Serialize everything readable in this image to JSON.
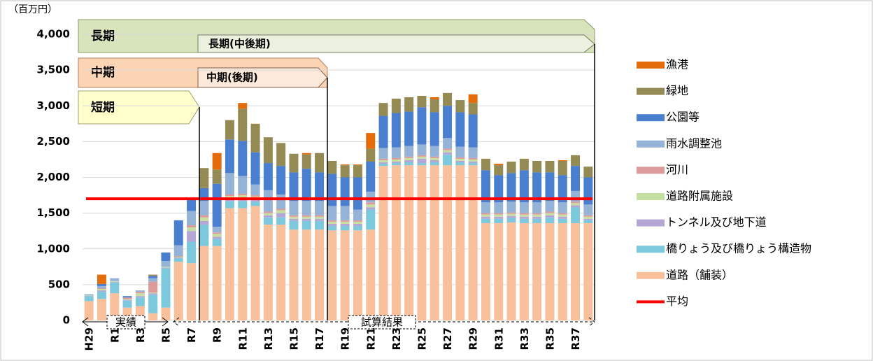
{
  "chart_data": {
    "type": "bar",
    "stacked": true,
    "y_unit": "（百万円）",
    "categories": [
      "H29",
      null,
      "R1",
      null,
      "R3",
      null,
      "R5",
      null,
      "R7",
      null,
      "R9",
      null,
      "R11",
      null,
      "R13",
      null,
      "R15",
      null,
      "R17",
      null,
      "R19",
      null,
      "R21",
      null,
      "R23",
      null,
      "R25",
      null,
      "R27",
      null,
      "R29",
      null,
      "R31",
      null,
      "R33",
      null,
      "R35",
      null,
      "R37",
      null
    ],
    "ylim": [
      0,
      4000
    ],
    "yticks": [
      0,
      500,
      {
        "value": 1000,
        "label": "1,000"
      },
      {
        "value": 1500,
        "label": "1,500"
      },
      {
        "value": 2000,
        "label": "2,000"
      },
      {
        "value": 2500,
        "label": "2,500"
      },
      {
        "value": 3000,
        "label": "3,000"
      },
      {
        "value": 3500,
        "label": "3,500"
      },
      {
        "value": 4000,
        "label": "4,000"
      }
    ],
    "grid": true,
    "legend": "right",
    "series": [
      {
        "name": "道路（舗装）",
        "color": "#f8c19c",
        "values": [
          270,
          300,
          380,
          180,
          200,
          100,
          180,
          820,
          800,
          1040,
          1040,
          1570,
          1570,
          1600,
          1340,
          1340,
          1270,
          1270,
          1270,
          1260,
          1260,
          1260,
          1270,
          2160,
          2170,
          2170,
          2170,
          2170,
          2170,
          2170,
          2170,
          1360,
          1360,
          1370,
          1360,
          1360,
          1360,
          1360,
          1360,
          1360
        ]
      },
      {
        "name": "橋りょう及び橋りょう構造物",
        "color": "#7cc8dd",
        "values": [
          70,
          100,
          150,
          100,
          120,
          260,
          550,
          50,
          300,
          300,
          100,
          100,
          100,
          60,
          100,
          100,
          120,
          120,
          120,
          60,
          60,
          60,
          280,
          30,
          30,
          40,
          30,
          40,
          150,
          40,
          30,
          60,
          60,
          60,
          60,
          60,
          80,
          60,
          220,
          40
        ]
      },
      {
        "name": "トンネル及び地下道",
        "color": "#b4a7d6",
        "values": [
          10,
          20,
          10,
          10,
          20,
          20,
          10,
          10,
          150,
          50,
          30,
          30,
          30,
          30,
          30,
          60,
          30,
          30,
          30,
          30,
          30,
          30,
          30,
          20,
          20,
          30,
          60,
          30,
          30,
          20,
          20,
          30,
          30,
          30,
          30,
          30,
          30,
          30,
          30,
          20
        ]
      },
      {
        "name": "道路附属施設",
        "color": "#c5dfa0",
        "values": [
          10,
          20,
          10,
          10,
          40,
          10,
          10,
          10,
          50,
          50,
          40,
          40,
          50,
          40,
          30,
          40,
          30,
          30,
          30,
          30,
          30,
          30,
          40,
          30,
          30,
          30,
          30,
          30,
          30,
          30,
          30,
          30,
          30,
          30,
          30,
          30,
          30,
          30,
          30,
          30
        ]
      },
      {
        "name": "河川",
        "color": "#dd9a9a",
        "values": [
          0,
          10,
          0,
          20,
          20,
          150,
          0,
          10,
          30,
          30,
          20,
          20,
          20,
          20,
          20,
          20,
          20,
          20,
          20,
          20,
          20,
          20,
          30,
          20,
          20,
          20,
          20,
          20,
          20,
          20,
          20,
          20,
          20,
          20,
          20,
          20,
          20,
          20,
          20,
          20
        ]
      },
      {
        "name": "雨水調整池",
        "color": "#95b3d7",
        "values": [
          10,
          30,
          40,
          0,
          20,
          50,
          80,
          150,
          200,
          200,
          80,
          300,
          250,
          150,
          300,
          200,
          200,
          200,
          200,
          200,
          200,
          150,
          150,
          150,
          150,
          150,
          150,
          150,
          150,
          150,
          150,
          150,
          150,
          150,
          150,
          150,
          150,
          150,
          150,
          150
        ]
      },
      {
        "name": "公園等",
        "color": "#4a7fd0",
        "values": [
          0,
          30,
          0,
          20,
          0,
          30,
          120,
          350,
          170,
          180,
          600,
          470,
          490,
          450,
          380,
          400,
          400,
          450,
          400,
          450,
          400,
          450,
          420,
          450,
          480,
          480,
          520,
          470,
          450,
          480,
          460,
          450,
          380,
          400,
          450,
          420,
          400,
          380,
          350,
          380
        ]
      },
      {
        "name": "緑地",
        "color": "#948a54",
        "values": [
          0,
          0,
          0,
          0,
          0,
          20,
          0,
          0,
          0,
          280,
          200,
          270,
          450,
          400,
          360,
          320,
          260,
          200,
          270,
          180,
          170,
          170,
          180,
          180,
          200,
          200,
          160,
          180,
          180,
          170,
          160,
          160,
          140,
          160,
          160,
          160,
          160,
          200,
          150,
          150
        ]
      },
      {
        "name": "漁港",
        "color": "#e46c0a",
        "values": [
          0,
          130,
          0,
          0,
          0,
          0,
          0,
          0,
          0,
          0,
          230,
          0,
          80,
          0,
          0,
          0,
          0,
          20,
          0,
          0,
          10,
          10,
          220,
          0,
          0,
          0,
          0,
          30,
          0,
          0,
          120,
          0,
          20,
          0,
          0,
          0,
          0,
          10,
          0,
          0
        ]
      }
    ],
    "average": {
      "name": "平均",
      "value": 1700,
      "color": "#ff0000"
    },
    "annotations": [
      "長期",
      "長期(中後期)",
      "中期",
      "中期(後期)",
      "短期",
      "実績",
      "試算結果"
    ]
  }
}
